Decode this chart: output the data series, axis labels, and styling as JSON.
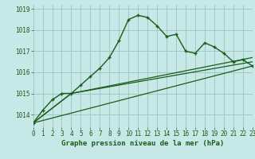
{
  "title": "Graphe pression niveau de la mer (hPa)",
  "bg_color": "#c6e8e6",
  "grid_color": "#a0c8c4",
  "line_color": "#1a5c1a",
  "x_min": 0,
  "x_max": 23,
  "y_min": 1013.4,
  "y_max": 1019.2,
  "values1": [
    1013.6,
    1014.2,
    1014.7,
    1015.0,
    1015.0,
    1015.4,
    1015.8,
    1016.2,
    1016.7,
    1017.5,
    1018.5,
    1018.7,
    1018.6,
    1018.2,
    1017.7,
    1017.8,
    1017.0,
    1016.9,
    1017.4,
    1017.2,
    1016.9,
    1016.5,
    1016.6,
    1016.3
  ],
  "line2_x": [
    0,
    23
  ],
  "line2_y": [
    1013.6,
    1016.3
  ],
  "line3_x": [
    0,
    4,
    23
  ],
  "line3_y": [
    1013.6,
    1015.0,
    1016.5
  ],
  "line4_x": [
    0,
    4,
    23
  ],
  "line4_y": [
    1013.6,
    1015.0,
    1016.7
  ],
  "yticks": [
    1014,
    1015,
    1016,
    1017,
    1018,
    1019
  ],
  "xticks": [
    0,
    1,
    2,
    3,
    4,
    5,
    6,
    7,
    8,
    9,
    10,
    11,
    12,
    13,
    14,
    15,
    16,
    17,
    18,
    19,
    20,
    21,
    22,
    23
  ],
  "xlabel_fontsize": 6.5,
  "tick_fontsize": 5.5
}
